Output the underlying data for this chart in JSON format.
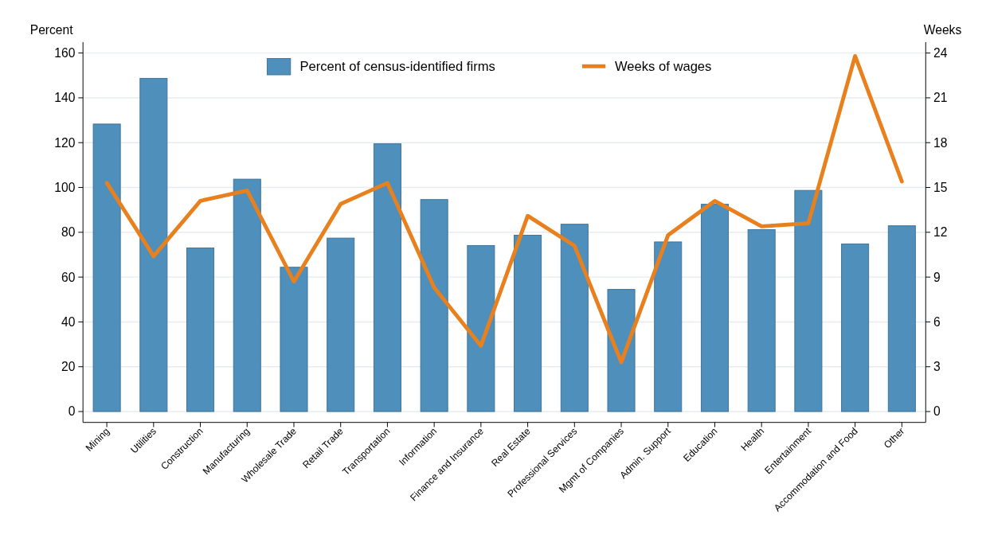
{
  "chart_data": {
    "type": "bar",
    "ylabel": "Percent",
    "y2label": "Weeks",
    "categories": [
      "Mining",
      "Utilities",
      "Construction",
      "Manufacturing",
      "Wholesale Trade",
      "Retail Trade",
      "Transportation",
      "Information",
      "Finance and Insurance",
      "Real Estate",
      "Professional Services",
      "Mgmt of Companies",
      "Admin. Support",
      "Education",
      "Health",
      "Entertainment",
      "Accommodation and Food",
      "Other"
    ],
    "series": [
      {
        "name": "Percent of census-identified firms",
        "color": "#4e8fbc",
        "values": [
          128.3,
          148.7,
          73,
          103.7,
          64.4,
          77.4,
          119.5,
          94.6,
          74.1,
          78.7,
          83.6,
          54.5,
          75.7,
          92.5,
          81.2,
          98.7,
          74.8,
          82.9
        ]
      },
      {
        "name": "Weeks of wages",
        "type": "line",
        "axis": "y2",
        "color": "#e8801e",
        "values": [
          15.3,
          10.4,
          14.1,
          14.8,
          8.7,
          13.9,
          15.3,
          8.3,
          4.4,
          13.1,
          11.1,
          3.3,
          11.8,
          14.1,
          12.4,
          12.6,
          23.8,
          15.4
        ]
      }
    ],
    "ylim": [
      0,
      160
    ],
    "yticks": [
      0,
      20,
      40,
      60,
      80,
      100,
      120,
      140,
      160
    ],
    "y2lim": [
      0,
      24
    ],
    "y2ticks": [
      0,
      3,
      6,
      9,
      12,
      15,
      18,
      21,
      24
    ],
    "grid": "y",
    "legend": "top",
    "marker": "none",
    "line_style": "solid"
  }
}
